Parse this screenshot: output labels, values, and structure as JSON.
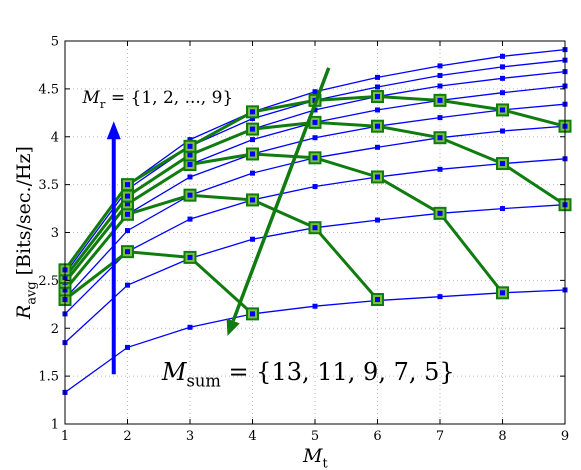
{
  "chart_data": {
    "type": "line",
    "xlabel": "M_t",
    "ylabel": "R_avg [Bits/sec./Hz]",
    "xlim": [
      1,
      9
    ],
    "ylim": [
      1,
      5
    ],
    "x_ticks": [
      1,
      2,
      3,
      4,
      5,
      6,
      7,
      8,
      9
    ],
    "y_ticks": [
      1,
      1.5,
      2,
      2.5,
      3,
      3.5,
      4,
      4.5,
      5
    ],
    "grid": true,
    "x": [
      1,
      2,
      3,
      4,
      5,
      6,
      7,
      8,
      9
    ],
    "series": [
      {
        "values": [
          1.33,
          1.8,
          2.01,
          2.15,
          2.23,
          2.29,
          2.33,
          2.37,
          2.4
        ]
      },
      {
        "values": [
          1.85,
          2.45,
          2.73,
          2.93,
          3.05,
          3.13,
          3.2,
          3.25,
          3.29
        ]
      },
      {
        "values": [
          2.15,
          2.8,
          3.14,
          3.34,
          3.48,
          3.58,
          3.66,
          3.72,
          3.77
        ]
      },
      {
        "values": [
          2.31,
          3.02,
          3.39,
          3.62,
          3.78,
          3.89,
          3.99,
          4.06,
          4.11
        ]
      },
      {
        "values": [
          2.4,
          3.19,
          3.58,
          3.82,
          3.99,
          4.11,
          4.2,
          4.28,
          4.34
        ]
      },
      {
        "values": [
          2.48,
          3.3,
          3.71,
          3.97,
          4.15,
          4.28,
          4.38,
          4.46,
          4.53
        ]
      },
      {
        "values": [
          2.53,
          3.38,
          3.81,
          4.08,
          4.28,
          4.42,
          4.53,
          4.61,
          4.68
        ]
      },
      {
        "values": [
          2.57,
          3.45,
          3.9,
          4.19,
          4.38,
          4.52,
          4.64,
          4.73,
          4.8
        ]
      },
      {
        "values": [
          2.61,
          3.5,
          3.97,
          4.26,
          4.47,
          4.62,
          4.74,
          4.84,
          4.91
        ]
      }
    ],
    "sum_curves": [
      {
        "points": [
          [
            1,
            2.3
          ],
          [
            2,
            2.8
          ],
          [
            3,
            2.74
          ],
          [
            4,
            2.15
          ]
        ]
      },
      {
        "points": [
          [
            1,
            2.4
          ],
          [
            2,
            3.19
          ],
          [
            3,
            3.39
          ],
          [
            4,
            3.34
          ],
          [
            5,
            3.05
          ],
          [
            6,
            2.3
          ]
        ]
      },
      {
        "points": [
          [
            1,
            2.48
          ],
          [
            2,
            3.3
          ],
          [
            3,
            3.71
          ],
          [
            4,
            3.82
          ],
          [
            5,
            3.78
          ],
          [
            6,
            3.58
          ],
          [
            7,
            3.2
          ],
          [
            8,
            2.37
          ]
        ]
      },
      {
        "points": [
          [
            1,
            2.53
          ],
          [
            2,
            3.38
          ],
          [
            3,
            3.81
          ],
          [
            4,
            4.08
          ],
          [
            5,
            4.15
          ],
          [
            6,
            4.11
          ],
          [
            7,
            3.99
          ],
          [
            8,
            3.72
          ],
          [
            9,
            3.29
          ]
        ]
      },
      {
        "points": [
          [
            1,
            2.61
          ],
          [
            2,
            3.5
          ],
          [
            3,
            3.9
          ],
          [
            4,
            4.26
          ],
          [
            5,
            4.38
          ],
          [
            6,
            4.42
          ],
          [
            7,
            4.38
          ],
          [
            8,
            4.28
          ],
          [
            9,
            4.11
          ]
        ]
      }
    ],
    "annotations": {
      "mr_text": "M_r = {1, 2, ..., 9}",
      "msum_text": "M_sum = {13, 11, 9, 7, 5}"
    },
    "colors": {
      "series": "#0000ff",
      "sum_curves": "#107c10",
      "sum_marker_fill": "#7bbf3e",
      "mr_arrow": "#0000ff",
      "msum_arrow": "#107c10"
    }
  }
}
